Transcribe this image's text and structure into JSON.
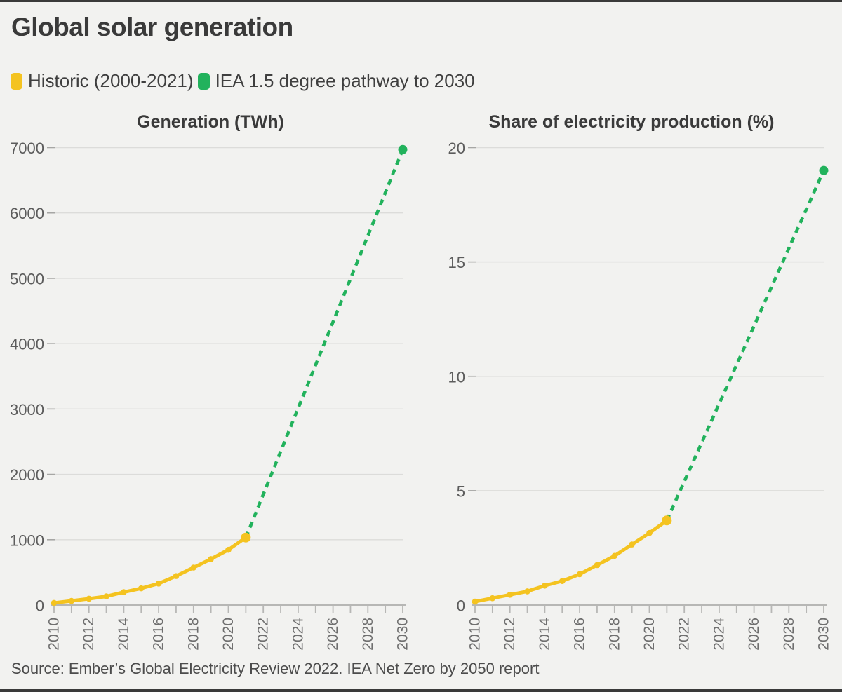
{
  "page": {
    "title": "Global solar generation",
    "source": "Source: Ember’s Global Electricity Review 2022. IEA Net Zero by 2050 report"
  },
  "theme": {
    "background": "#f2f2f0",
    "frame_bar": "#3a3a3a",
    "grid": "#dcdcda",
    "axis": "#b7b7b5",
    "y_tick": "#a6a6a4",
    "historic": "#f4c320",
    "pathway": "#22b25c"
  },
  "legend": {
    "items": [
      {
        "label": "Historic (2000-2021)",
        "color": "#f4c320"
      },
      {
        "label": "IEA 1.5 degree pathway to 2030",
        "color": "#22b25c"
      }
    ]
  },
  "chart_data": [
    {
      "type": "line",
      "title": "Generation (TWh)",
      "ylabel": "TWh",
      "ylim": [
        0,
        7000
      ],
      "yticks": [
        0,
        1000,
        2000,
        3000,
        4000,
        5000,
        6000,
        7000
      ],
      "xlim": [
        2010,
        2030
      ],
      "xtick_minor_step": 1,
      "xtick_labels": [
        2010,
        2012,
        2014,
        2016,
        2018,
        2020,
        2022,
        2024,
        2026,
        2028,
        2030
      ],
      "grid": true,
      "legend_position": "top-left",
      "series": [
        {
          "name": "Historic (2000-2021)",
          "color": "#f4c320",
          "style": "solid",
          "x": [
            2010,
            2011,
            2012,
            2013,
            2014,
            2015,
            2016,
            2017,
            2018,
            2019,
            2020,
            2021
          ],
          "values": [
            33,
            64,
            97,
            133,
            198,
            256,
            329,
            444,
            574,
            704,
            846,
            1033
          ]
        },
        {
          "name": "IEA 1.5 degree pathway to 2030",
          "color": "#22b25c",
          "style": "dashed",
          "x": [
            2021,
            2030
          ],
          "values": [
            1033,
            6970
          ]
        }
      ]
    },
    {
      "type": "line",
      "title": "Share of electricity production (%)",
      "ylabel": "%",
      "ylim": [
        0,
        20
      ],
      "yticks": [
        0,
        5,
        10,
        15,
        20
      ],
      "xlim": [
        2010,
        2030
      ],
      "xtick_minor_step": 1,
      "xtick_labels": [
        2010,
        2012,
        2014,
        2016,
        2018,
        2020,
        2022,
        2024,
        2026,
        2028,
        2030
      ],
      "grid": true,
      "series": [
        {
          "name": "Historic (2000-2021)",
          "color": "#f4c320",
          "style": "solid",
          "x": [
            2010,
            2011,
            2012,
            2013,
            2014,
            2015,
            2016,
            2017,
            2018,
            2019,
            2020,
            2021
          ],
          "values": [
            0.15,
            0.3,
            0.45,
            0.6,
            0.85,
            1.05,
            1.35,
            1.75,
            2.15,
            2.65,
            3.15,
            3.7
          ]
        },
        {
          "name": "IEA 1.5 degree pathway to 2030",
          "color": "#22b25c",
          "style": "dashed",
          "x": [
            2021,
            2030
          ],
          "values": [
            3.7,
            19
          ]
        }
      ]
    }
  ]
}
